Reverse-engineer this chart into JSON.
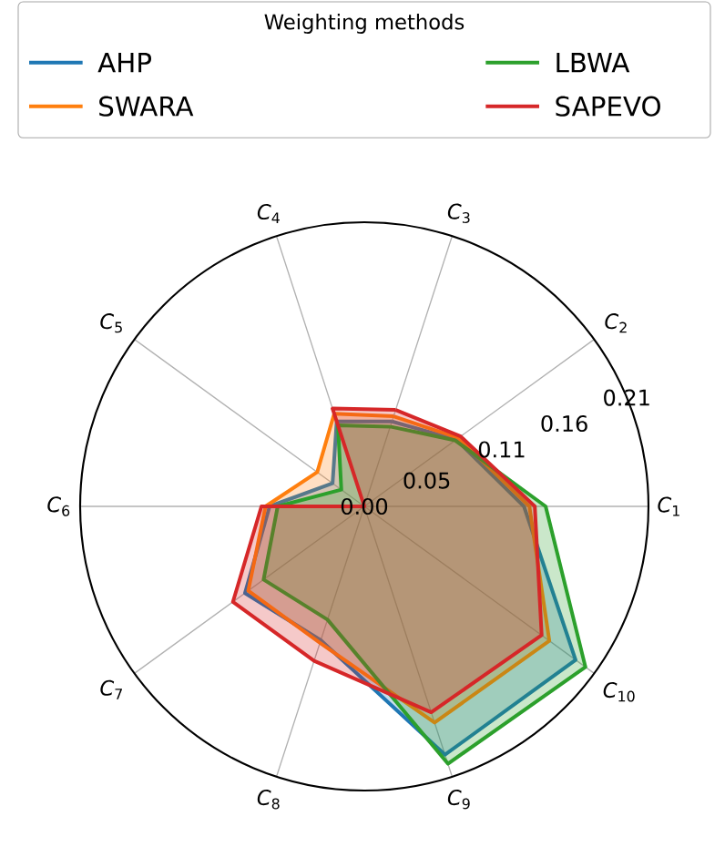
{
  "chart_data": {
    "type": "radar",
    "legend_title": "Weighting methods",
    "legend": "top",
    "grid": true,
    "marker": "none",
    "categories": [
      "*C*$_{3}$",
      "*C*$_{2}$",
      "*C*$_{1}$",
      "*C*$_{10}$",
      "*C*$_{9}$",
      "*C*$_{8}$",
      "*C*$_{7}$",
      "*C*$_{6}$",
      "*C*$_{5}$",
      "*C*$_{4}$"
    ],
    "ylim": [
      0,
      0.21
    ],
    "yticks": [
      {
        "value": 0,
        "label": "0.00"
      },
      0.05,
      0.11,
      0.16,
      0.21
    ],
    "series": [
      {
        "name": "AHP",
        "color": "#1f77b4",
        "values": [
          0.066,
          0.084,
          0.118,
          0.193,
          0.193,
          0.104,
          0.109,
          0.07,
          0.029,
          0.066
        ]
      },
      {
        "name": "SWARA",
        "color": "#ff7f0e",
        "values": [
          0.07,
          0.086,
          0.122,
          0.169,
          0.168,
          0.106,
          0.106,
          0.073,
          0.043,
          0.072
        ]
      },
      {
        "name": "LBWA",
        "color": "#2ca02c",
        "values": [
          0.062,
          0.083,
          0.134,
          0.202,
          0.2,
          0.088,
          0.092,
          0.064,
          0.021,
          0.063
        ]
      },
      {
        "name": "SAPEVO",
        "color": "#d62728",
        "values": [
          0.075,
          0.088,
          0.126,
          0.162,
          0.16,
          0.12,
          0.12,
          0.076,
          0.0,
          0.076
        ]
      }
    ]
  }
}
